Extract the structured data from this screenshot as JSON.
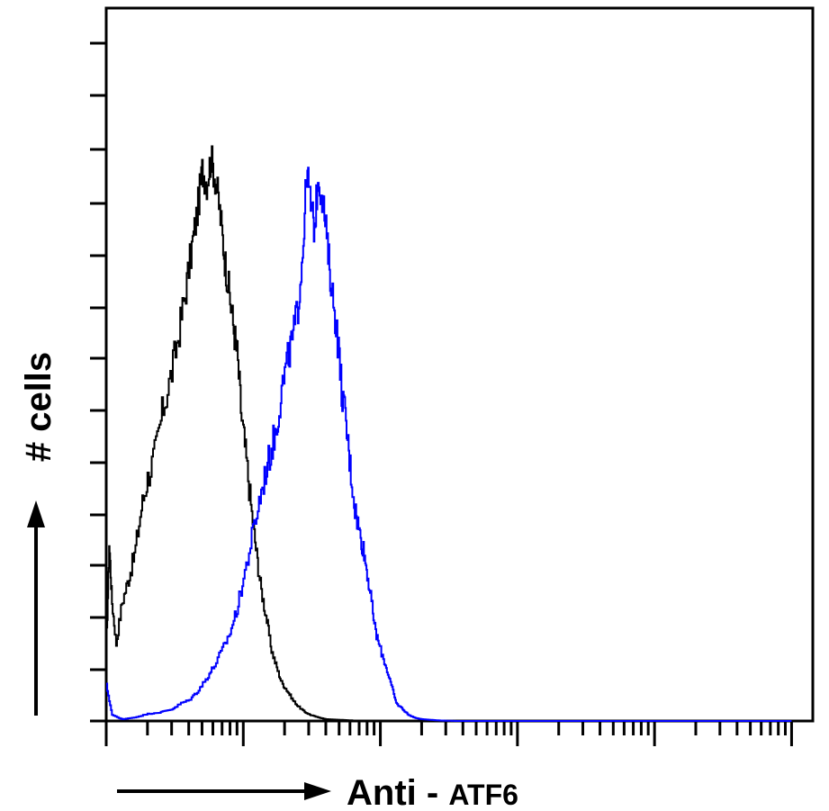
{
  "chart_data": {
    "type": "line",
    "title": "",
    "xlabel": "Anti - ATF6",
    "xlabel_parts": {
      "main": "Anti - ",
      "target": "ATF6"
    },
    "ylabel": "# cells",
    "x_scale": "log",
    "xlim": [
      1,
      100000
    ],
    "ylim": [
      0,
      100
    ],
    "grid": false,
    "legend": "none",
    "series": [
      {
        "color": "#000000",
        "x": [
          1,
          1.05,
          1.1,
          1.18,
          1.3,
          1.45,
          1.6,
          1.8,
          2.0,
          2.3,
          2.6,
          3.0,
          3.4,
          3.8,
          4.2,
          4.6,
          5.0,
          5.4,
          5.8,
          6.3,
          6.8,
          7.3,
          7.8,
          8.4,
          9.0,
          9.7,
          10.5,
          11.5,
          12.5,
          13.5,
          14.8,
          16,
          17.5,
          19,
          21,
          23,
          25,
          28,
          31,
          35,
          40,
          50,
          60,
          75,
          100
        ],
        "y": [
          12,
          30,
          20,
          13,
          20,
          24,
          28,
          36,
          41,
          46,
          53,
          59,
          66,
          73,
          80,
          86,
          93,
          91,
          95,
          91,
          85,
          78,
          73,
          67,
          62,
          51,
          44,
          35,
          28,
          22,
          17,
          12,
          9,
          6.5,
          5,
          3.5,
          2.5,
          1.5,
          1,
          0.6,
          0.3,
          0.2,
          0.1,
          0,
          0
        ]
      },
      {
        "color": "#0000ff",
        "x": [
          1,
          1.1,
          1.3,
          1.6,
          2.0,
          2.5,
          3.0,
          3.5,
          4.0,
          4.6,
          5.3,
          6.0,
          7.0,
          8.0,
          9.0,
          10,
          11.5,
          13,
          14.5,
          16,
          17.5,
          19,
          21,
          23,
          25,
          27,
          29,
          31,
          33,
          35,
          38,
          41,
          44,
          48,
          52,
          56,
          60,
          65,
          70,
          75,
          80,
          86,
          92,
          100,
          110,
          120,
          130,
          145,
          160,
          180,
          200,
          230,
          260,
          300,
          350,
          400,
          500,
          700,
          1000,
          1500,
          2000,
          100000
        ],
        "y": [
          6,
          1,
          0.3,
          0.6,
          1.2,
          1.5,
          2,
          3,
          3.5,
          5,
          7,
          9,
          12,
          15,
          19,
          24,
          31,
          37,
          42,
          46,
          50,
          56,
          61,
          65,
          70,
          79,
          93,
          87,
          83,
          92,
          88,
          80,
          73,
          66,
          56,
          50,
          43,
          36,
          32,
          29,
          25,
          20,
          15,
          12,
          9,
          6,
          3,
          2,
          1,
          0.5,
          0.3,
          0.2,
          0.1,
          0.05,
          0,
          0,
          0,
          0,
          0,
          0,
          0,
          0
        ]
      }
    ]
  }
}
